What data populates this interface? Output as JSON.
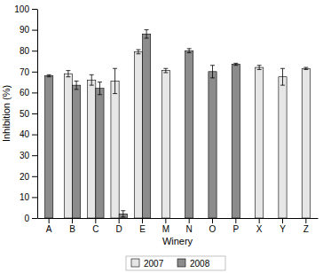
{
  "chart_data": {
    "type": "bar",
    "x_label": "Winery",
    "y_label": "Inhibition (%)",
    "categories": [
      "A",
      "B",
      "C",
      "D",
      "E",
      "M",
      "N",
      "O",
      "P",
      "X",
      "Y",
      "Z"
    ],
    "series": [
      {
        "name": "2007",
        "color": "#e6e6e6",
        "values": [
          null,
          69,
          66,
          65.5,
          79.5,
          70.5,
          null,
          null,
          null,
          72,
          67.5,
          71.5
        ],
        "errors": [
          null,
          1.5,
          2.5,
          6,
          1,
          1,
          null,
          null,
          null,
          1,
          4,
          0.5
        ]
      },
      {
        "name": "2008",
        "color": "#8c8c8c",
        "values": [
          68,
          63.5,
          62,
          2,
          88,
          null,
          80,
          70,
          73.5,
          null,
          null,
          null
        ],
        "errors": [
          0.5,
          2,
          3,
          1.5,
          2,
          null,
          1,
          3,
          0.5,
          null,
          null,
          null
        ]
      }
    ],
    "ylim": [
      0,
      100
    ],
    "yticks": [
      0,
      10,
      20,
      30,
      40,
      50,
      60,
      70,
      80,
      90,
      100
    ],
    "grid": false,
    "legend": "bottom"
  }
}
